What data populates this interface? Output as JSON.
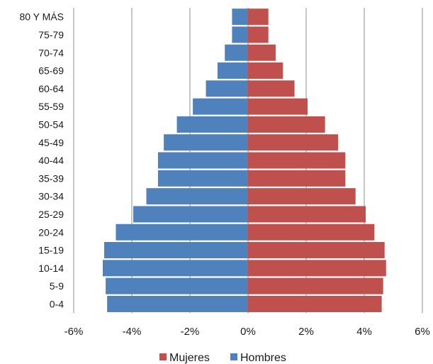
{
  "chart_data": {
    "type": "bar",
    "orientation": "horizontal",
    "layout": "population-pyramid",
    "categories": [
      "0-4",
      "5-9",
      "10-14",
      "15-19",
      "20-24",
      "25-29",
      "30-34",
      "35-39",
      "40-44",
      "45-49",
      "50-54",
      "55-59",
      "60-64",
      "65-69",
      "70-74",
      "75-79",
      "80 Y MÁS"
    ],
    "series": [
      {
        "name": "Mujeres",
        "color": "#C0504D",
        "values": [
          4.6,
          4.65,
          4.75,
          4.7,
          4.35,
          4.05,
          3.7,
          3.35,
          3.35,
          3.1,
          2.65,
          2.05,
          1.6,
          1.2,
          0.95,
          0.7,
          0.7
        ]
      },
      {
        "name": "Hombres",
        "color": "#4F81BD",
        "values": [
          -4.85,
          -4.9,
          -5.0,
          -4.95,
          -4.55,
          -3.95,
          -3.5,
          -3.1,
          -3.1,
          -2.9,
          -2.45,
          -1.9,
          -1.45,
          -1.05,
          -0.8,
          -0.55,
          -0.55
        ]
      }
    ],
    "xlim": [
      -6,
      6
    ],
    "xticks": [
      -6,
      -4,
      -2,
      0,
      2,
      4,
      6
    ],
    "xtick_labels": [
      "-6%",
      "-4%",
      "-2%",
      "0%",
      "2%",
      "4%",
      "6%"
    ],
    "grid": "vertical",
    "legend_position": "bottom",
    "legend": [
      "Mujeres",
      "Hombres"
    ],
    "title": "",
    "xlabel": "",
    "ylabel": ""
  }
}
